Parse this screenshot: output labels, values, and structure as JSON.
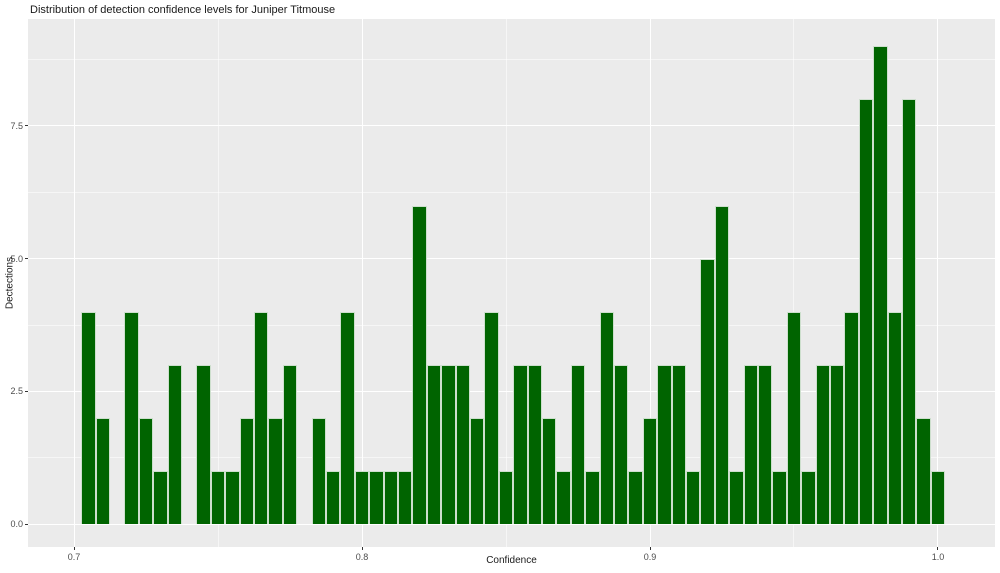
{
  "chart_data": {
    "type": "bar",
    "subtype": "histogram",
    "title": "Distribution of detection confidence levels for Juniper Titmouse",
    "xlabel": "Confidence",
    "ylabel": "Dectections",
    "legend": "none",
    "grid": "on",
    "panel_background": "#EBEBEB",
    "gridline_color": "#ffffff",
    "bar_color": "#006400",
    "bin_width": 0.005,
    "xlim": [
      0.684,
      1.0198
    ],
    "ylim": [
      -0.433,
      9.516
    ],
    "x_ticks": {
      "values": [
        0.7,
        0.8,
        0.9,
        1.0
      ],
      "labels": [
        "0.7",
        "0.8",
        "0.9",
        "1.0"
      ]
    },
    "y_ticks": {
      "values": [
        0,
        2.5,
        5,
        7.5
      ],
      "labels": [
        "0.0",
        "2.5",
        "5.0",
        "7.5"
      ]
    },
    "x_minor_ticks": [
      0.75,
      0.85,
      0.95
    ],
    "y_minor_ticks": [
      1.25,
      3.75,
      6.25,
      8.75
    ],
    "bin_centers": [
      0.705,
      0.71,
      0.715,
      0.72,
      0.725,
      0.73,
      0.735,
      0.74,
      0.745,
      0.75,
      0.755,
      0.76,
      0.765,
      0.77,
      0.775,
      0.78,
      0.785,
      0.79,
      0.795,
      0.8,
      0.805,
      0.81,
      0.815,
      0.82,
      0.825,
      0.83,
      0.835,
      0.84,
      0.845,
      0.85,
      0.855,
      0.86,
      0.865,
      0.87,
      0.875,
      0.88,
      0.885,
      0.89,
      0.895,
      0.9,
      0.905,
      0.91,
      0.915,
      0.92,
      0.925,
      0.93,
      0.935,
      0.94,
      0.945,
      0.95,
      0.955,
      0.96,
      0.965,
      0.97,
      0.975,
      0.98,
      0.985,
      0.99,
      0.995,
      1.0
    ],
    "counts": [
      4,
      2,
      0,
      4,
      2,
      1,
      3,
      0,
      3,
      1,
      1,
      2,
      4,
      2,
      3,
      0,
      2,
      1,
      4,
      1,
      1,
      1,
      1,
      6,
      3,
      3,
      3,
      2,
      4,
      1,
      3,
      3,
      2,
      1,
      3,
      1,
      4,
      3,
      1,
      2,
      3,
      3,
      1,
      5,
      6,
      1,
      3,
      3,
      1,
      4,
      1,
      3,
      3,
      4,
      8,
      9,
      4,
      8,
      2,
      1
    ]
  }
}
